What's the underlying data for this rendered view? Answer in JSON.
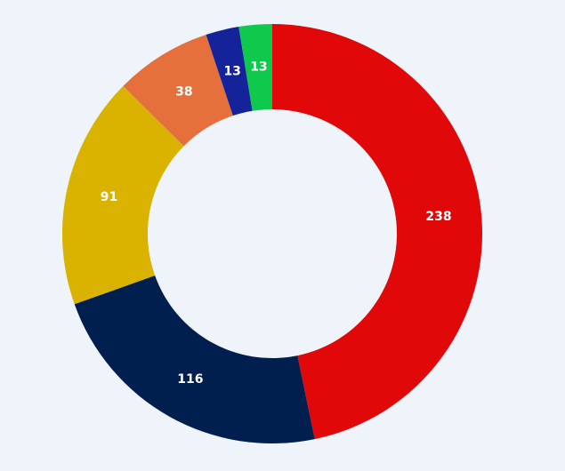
{
  "chart_data": {
    "type": "donut",
    "values": [
      238,
      116,
      91,
      38,
      13,
      13
    ],
    "colors": [
      "#e00808",
      "#001f4e",
      "#d9b300",
      "#e5703c",
      "#14239a",
      "#0ec94c"
    ]
  }
}
